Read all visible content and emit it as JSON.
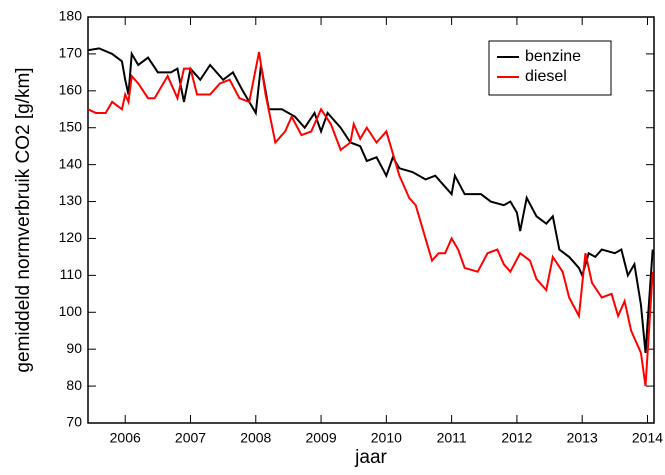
{
  "chart_data": {
    "type": "line",
    "x_label": "jaar",
    "y_label": "gemiddeld normverbruik CO2 [g/km]",
    "xlim": [
      2005.43,
      2014.1
    ],
    "xticks": [
      2006,
      2007,
      2008,
      2009,
      2010,
      2011,
      2012,
      2013,
      2014
    ],
    "ylim": [
      70,
      180
    ],
    "yticks": [
      70,
      80,
      90,
      100,
      110,
      120,
      130,
      140,
      150,
      160,
      170,
      180
    ],
    "legend": "top-right",
    "series": [
      {
        "name": "benzine",
        "color": "#000000",
        "x": [
          2005.43,
          2005.6,
          2005.8,
          2005.95,
          2006.0,
          2006.05,
          2006.1,
          2006.2,
          2006.35,
          2006.5,
          2006.7,
          2006.8,
          2006.9,
          2007.0,
          2007.15,
          2007.3,
          2007.5,
          2007.65,
          2007.8,
          2008.0,
          2008.08,
          2008.2,
          2008.4,
          2008.6,
          2008.75,
          2008.9,
          2009.0,
          2009.1,
          2009.3,
          2009.45,
          2009.6,
          2009.7,
          2009.85,
          2010.0,
          2010.1,
          2010.2,
          2010.4,
          2010.6,
          2010.75,
          2010.9,
          2011.0,
          2011.05,
          2011.2,
          2011.45,
          2011.6,
          2011.8,
          2011.9,
          2012.0,
          2012.05,
          2012.15,
          2012.3,
          2012.45,
          2012.55,
          2012.65,
          2012.8,
          2012.95,
          2013.0,
          2013.1,
          2013.2,
          2013.3,
          2013.5,
          2013.6,
          2013.7,
          2013.8,
          2013.9,
          2013.97,
          2014.08
        ],
        "values": [
          171,
          171.5,
          170,
          168,
          163,
          159,
          170,
          167,
          169,
          165,
          165,
          166,
          157,
          166,
          163,
          167,
          163,
          165,
          160,
          154,
          167,
          155,
          155,
          153,
          150,
          154,
          149,
          154,
          150,
          146,
          145,
          141,
          142,
          137,
          142,
          139,
          138,
          136,
          137,
          134,
          132,
          137,
          132,
          132,
          130,
          129,
          130,
          127,
          122,
          131,
          126,
          124,
          126,
          117,
          115,
          112,
          110,
          116,
          115,
          117,
          116,
          117,
          110,
          113,
          102,
          89,
          117
        ]
      },
      {
        "name": "diesel",
        "color": "#ff0000",
        "x": [
          2005.43,
          2005.55,
          2005.7,
          2005.8,
          2005.95,
          2006.0,
          2006.05,
          2006.1,
          2006.2,
          2006.35,
          2006.45,
          2006.55,
          2006.65,
          2006.8,
          2006.9,
          2007.0,
          2007.1,
          2007.3,
          2007.45,
          2007.6,
          2007.75,
          2007.9,
          2008.05,
          2008.15,
          2008.3,
          2008.45,
          2008.55,
          2008.7,
          2008.85,
          2009.0,
          2009.15,
          2009.3,
          2009.45,
          2009.5,
          2009.6,
          2009.7,
          2009.85,
          2010.0,
          2010.1,
          2010.2,
          2010.35,
          2010.45,
          2010.6,
          2010.7,
          2010.8,
          2010.9,
          2011.0,
          2011.1,
          2011.2,
          2011.4,
          2011.55,
          2011.7,
          2011.8,
          2011.9,
          2012.05,
          2012.2,
          2012.3,
          2012.45,
          2012.55,
          2012.7,
          2012.8,
          2012.95,
          2013.05,
          2013.15,
          2013.3,
          2013.45,
          2013.55,
          2013.65,
          2013.75,
          2013.85,
          2013.9,
          2013.97,
          2014.08
        ],
        "values": [
          155,
          154,
          154,
          157,
          155,
          159,
          157,
          164,
          162,
          158,
          158,
          161,
          164,
          158,
          166,
          166,
          159,
          159,
          162,
          163,
          158,
          157,
          170.5,
          159,
          146,
          149,
          153,
          148,
          149,
          155,
          151,
          144,
          146,
          151,
          147,
          150,
          146,
          149,
          143,
          137,
          131,
          129,
          120,
          114,
          116,
          116,
          120,
          117,
          112,
          111,
          116,
          117,
          113,
          111,
          116,
          114,
          109,
          106,
          115,
          111,
          104,
          99,
          116,
          108,
          104,
          105,
          99,
          103,
          95,
          91,
          89,
          80,
          111
        ]
      }
    ]
  }
}
